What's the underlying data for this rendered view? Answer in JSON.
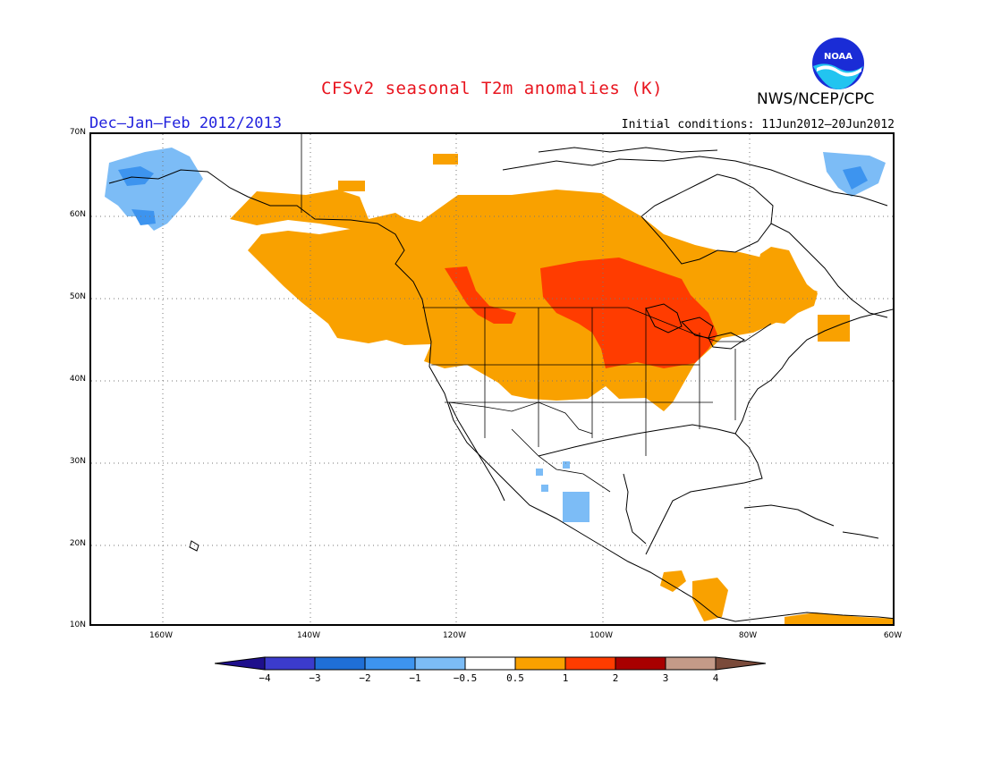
{
  "title": "CFSv2 seasonal T2m anomalies (K)",
  "period": "Dec–Jan–Feb 2012/2013",
  "initial_conditions": "Initial conditions: 11Jun2012–20Jun2012",
  "agency": "NWS/NCEP/CPC",
  "logo_text": "NOAA",
  "lat_labels": [
    "70N",
    "60N",
    "50N",
    "40N",
    "30N",
    "20N",
    "10N"
  ],
  "lon_labels": [
    "160W",
    "140W",
    "120W",
    "100W",
    "80W",
    "60W"
  ],
  "colorbar": {
    "labels": [
      "−4",
      "−3",
      "−2",
      "−1",
      "−0.5",
      "0.5",
      "1",
      "2",
      "3",
      "4"
    ],
    "colors": [
      "#1e0f8c",
      "#3b3bcc",
      "#1f6fd6",
      "#3d94ef",
      "#7cbcf6",
      "#ffffff",
      "#f9a100",
      "#ff3c00",
      "#a80000",
      "#c49a88",
      "#7a4a3a"
    ]
  },
  "anomaly_colors": {
    "warm1": "#f9a100",
    "warm2": "#ff3c00",
    "cool1": "#7cbcf6",
    "cool2": "#3d94ef"
  }
}
